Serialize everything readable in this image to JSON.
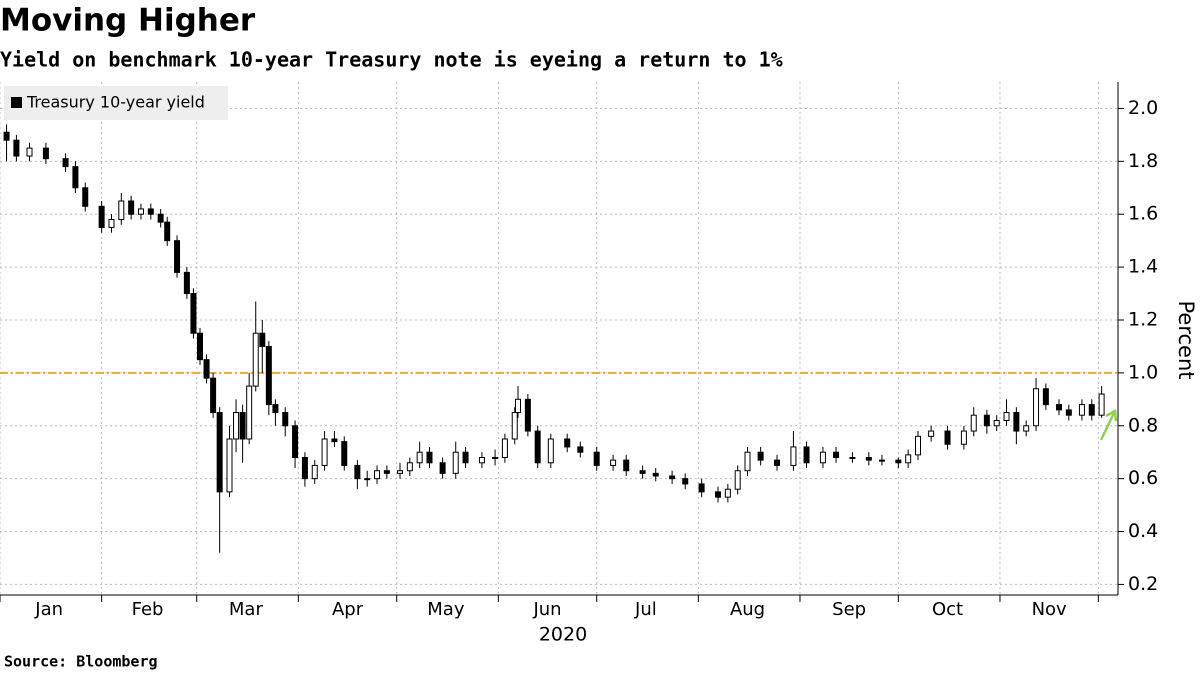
{
  "chart_data": {
    "type": "candlestick",
    "title": "Moving Higher",
    "subtitle": "Yield on benchmark 10-year Treasury note is eyeing a return to 1%",
    "source": "Source: Bloomberg",
    "series_name": "Treasury 10-year yield",
    "y_label": "Percent",
    "x_label": "2020",
    "up_color": "#ffffff",
    "down_color": "#000000",
    "edge_color": "#000000",
    "x": [
      3,
      6,
      10,
      15,
      21,
      24,
      27,
      32,
      35,
      38,
      41,
      44,
      47,
      50,
      52,
      55,
      58,
      60,
      62,
      64,
      66,
      68,
      71,
      73,
      75,
      77,
      79,
      81,
      83,
      85,
      88,
      91,
      94,
      97,
      100,
      103,
      106,
      110,
      113,
      116,
      119,
      123,
      126,
      129,
      132,
      136,
      140,
      143,
      148,
      152,
      155,
      158,
      159,
      162,
      165,
      169,
      174,
      178,
      183,
      188,
      192,
      197,
      201,
      206,
      210,
      215,
      220,
      223,
      226,
      229,
      233,
      238,
      243,
      247,
      252,
      256,
      261,
      266,
      270,
      275,
      278,
      281,
      285,
      290,
      295,
      298,
      302,
      305,
      308,
      311,
      314,
      317,
      320,
      324,
      327,
      331,
      334,
      337
    ],
    "open": [
      1.91,
      1.88,
      1.82,
      1.85,
      1.81,
      1.78,
      1.7,
      1.63,
      1.55,
      1.58,
      1.65,
      1.6,
      1.62,
      1.6,
      1.57,
      1.5,
      1.38,
      1.3,
      1.15,
      1.05,
      0.98,
      0.85,
      0.55,
      0.75,
      0.85,
      0.75,
      0.95,
      1.15,
      1.1,
      0.88,
      0.85,
      0.8,
      0.68,
      0.6,
      0.65,
      0.75,
      0.74,
      0.65,
      0.6,
      0.6,
      0.63,
      0.62,
      0.63,
      0.66,
      0.7,
      0.66,
      0.62,
      0.7,
      0.66,
      0.68,
      0.68,
      0.75,
      0.85,
      0.9,
      0.78,
      0.66,
      0.75,
      0.72,
      0.7,
      0.65,
      0.67,
      0.63,
      0.62,
      0.61,
      0.6,
      0.58,
      0.55,
      0.53,
      0.56,
      0.63,
      0.7,
      0.67,
      0.65,
      0.72,
      0.66,
      0.7,
      0.68,
      0.68,
      0.67,
      0.67,
      0.66,
      0.69,
      0.76,
      0.78,
      0.73,
      0.78,
      0.84,
      0.8,
      0.82,
      0.85,
      0.78,
      0.8,
      0.94,
      0.88,
      0.86,
      0.84,
      0.88,
      0.84
    ],
    "high": [
      1.94,
      1.9,
      1.87,
      1.87,
      1.83,
      1.8,
      1.72,
      1.65,
      1.6,
      1.68,
      1.67,
      1.64,
      1.64,
      1.62,
      1.59,
      1.52,
      1.4,
      1.32,
      1.17,
      1.07,
      1.0,
      0.87,
      0.8,
      0.9,
      0.88,
      1.0,
      1.27,
      1.2,
      1.12,
      0.9,
      0.87,
      0.82,
      0.7,
      0.67,
      0.78,
      0.78,
      0.76,
      0.67,
      0.63,
      0.65,
      0.65,
      0.66,
      0.68,
      0.74,
      0.72,
      0.68,
      0.74,
      0.72,
      0.7,
      0.71,
      0.77,
      0.87,
      0.95,
      0.92,
      0.8,
      0.77,
      0.77,
      0.74,
      0.72,
      0.69,
      0.69,
      0.65,
      0.64,
      0.63,
      0.62,
      0.6,
      0.57,
      0.58,
      0.65,
      0.72,
      0.72,
      0.69,
      0.78,
      0.74,
      0.72,
      0.72,
      0.7,
      0.7,
      0.69,
      0.68,
      0.71,
      0.78,
      0.8,
      0.8,
      0.8,
      0.87,
      0.86,
      0.84,
      0.9,
      0.87,
      0.82,
      0.98,
      0.96,
      0.9,
      0.88,
      0.9,
      0.9,
      0.95
    ],
    "low": [
      1.8,
      1.8,
      1.8,
      1.79,
      1.76,
      1.68,
      1.61,
      1.53,
      1.53,
      1.56,
      1.58,
      1.58,
      1.58,
      1.55,
      1.48,
      1.36,
      1.28,
      1.13,
      1.03,
      0.96,
      0.83,
      0.32,
      0.53,
      0.7,
      0.66,
      0.73,
      0.93,
      1.0,
      0.84,
      0.8,
      0.76,
      0.64,
      0.57,
      0.58,
      0.63,
      0.72,
      0.63,
      0.56,
      0.57,
      0.58,
      0.6,
      0.6,
      0.61,
      0.64,
      0.64,
      0.6,
      0.6,
      0.64,
      0.64,
      0.65,
      0.66,
      0.73,
      0.83,
      0.76,
      0.64,
      0.64,
      0.7,
      0.68,
      0.63,
      0.63,
      0.61,
      0.6,
      0.59,
      0.58,
      0.56,
      0.53,
      0.51,
      0.51,
      0.54,
      0.61,
      0.65,
      0.63,
      0.63,
      0.64,
      0.64,
      0.66,
      0.66,
      0.65,
      0.65,
      0.64,
      0.64,
      0.67,
      0.74,
      0.71,
      0.71,
      0.76,
      0.77,
      0.78,
      0.8,
      0.73,
      0.76,
      0.78,
      0.86,
      0.84,
      0.82,
      0.82,
      0.82,
      0.83
    ],
    "close": [
      1.88,
      1.82,
      1.85,
      1.81,
      1.78,
      1.7,
      1.63,
      1.55,
      1.58,
      1.65,
      1.6,
      1.62,
      1.6,
      1.57,
      1.5,
      1.38,
      1.3,
      1.15,
      1.05,
      0.98,
      0.85,
      0.55,
      0.75,
      0.85,
      0.75,
      0.95,
      1.15,
      1.1,
      0.88,
      0.85,
      0.8,
      0.68,
      0.6,
      0.65,
      0.75,
      0.74,
      0.65,
      0.6,
      0.6,
      0.63,
      0.62,
      0.63,
      0.66,
      0.7,
      0.66,
      0.62,
      0.7,
      0.66,
      0.68,
      0.68,
      0.75,
      0.85,
      0.9,
      0.78,
      0.66,
      0.75,
      0.72,
      0.7,
      0.65,
      0.67,
      0.63,
      0.62,
      0.61,
      0.6,
      0.58,
      0.55,
      0.53,
      0.56,
      0.63,
      0.7,
      0.67,
      0.65,
      0.72,
      0.66,
      0.7,
      0.68,
      0.68,
      0.67,
      0.67,
      0.66,
      0.69,
      0.76,
      0.78,
      0.73,
      0.78,
      0.84,
      0.8,
      0.82,
      0.85,
      0.78,
      0.8,
      0.94,
      0.88,
      0.86,
      0.84,
      0.88,
      0.84,
      0.92
    ],
    "xlim": [
      1,
      342
    ],
    "xticks": [
      1,
      32,
      61,
      92,
      122,
      153,
      183,
      214,
      245,
      275,
      306,
      336
    ],
    "month_labels": [
      {
        "value": 16,
        "label": "Jan"
      },
      {
        "value": 46,
        "label": "Feb"
      },
      {
        "value": 76,
        "label": "Mar"
      },
      {
        "value": 107,
        "label": "Apr"
      },
      {
        "value": 137,
        "label": "May"
      },
      {
        "value": 168,
        "label": "Jun"
      },
      {
        "value": 198,
        "label": "Jul"
      },
      {
        "value": 229,
        "label": "Aug"
      },
      {
        "value": 260,
        "label": "Sep"
      },
      {
        "value": 290,
        "label": "Oct"
      },
      {
        "value": 321,
        "label": "Nov"
      }
    ],
    "ylim": [
      0.16,
      2.1
    ],
    "yticks": [
      0.2,
      0.4,
      0.6,
      0.8,
      {
        "value": 1,
        "label": "1.0"
      },
      1.2,
      1.4,
      1.6,
      1.8,
      {
        "value": 2,
        "label": "2.0"
      }
    ],
    "reference_line": {
      "value": 1,
      "color": "#f5a623"
    },
    "grid": true
  }
}
